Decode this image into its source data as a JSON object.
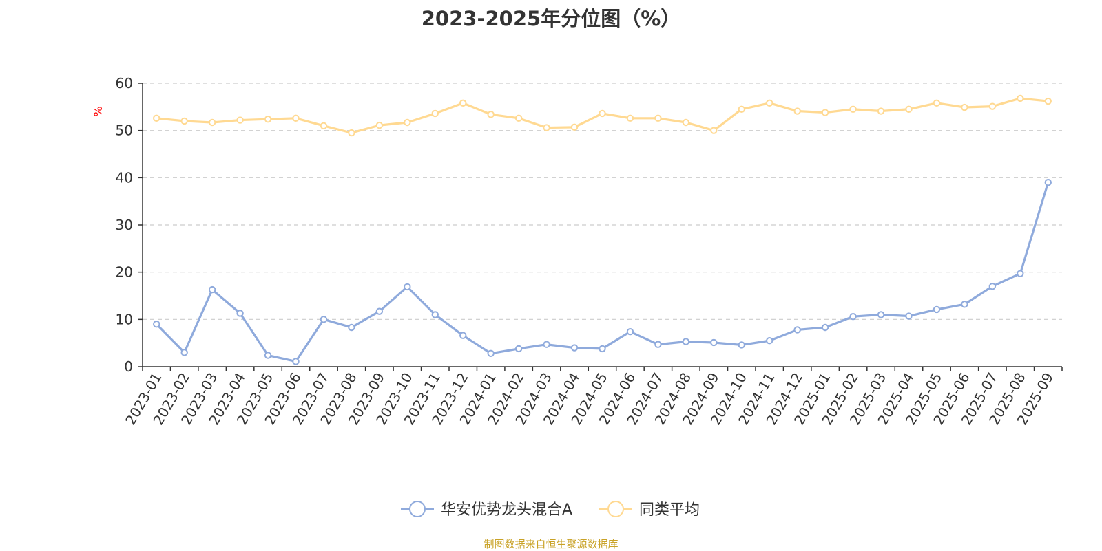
{
  "colors": {
    "series1": "#8faadc",
    "series2": "#ffd992",
    "axis": "#333333",
    "grid": "#cccccc",
    "unit": "#ff0000",
    "footer": "#c9a227"
  },
  "chart_data": {
    "type": "line",
    "title": "2023-2025年分位图（%）",
    "ylabel": "%",
    "xlabel": "",
    "ylim": [
      0,
      60
    ],
    "yticks": [
      "0",
      "10",
      "20",
      "30",
      "40",
      "50",
      "60"
    ],
    "grid": true,
    "legend_position": "bottom-center",
    "categories": [
      "2023-01",
      "2023-02",
      "2023-03",
      "2023-04",
      "2023-05",
      "2023-06",
      "2023-07",
      "2023-08",
      "2023-09",
      "2023-10",
      "2023-11",
      "2023-12",
      "2024-01",
      "2024-02",
      "2024-03",
      "2024-04",
      "2024-05",
      "2024-06",
      "2024-07",
      "2024-08",
      "2024-09",
      "2024-10",
      "2024-11",
      "2024-12",
      "2025-01",
      "2025-02",
      "2025-03",
      "2025-04",
      "2025-05",
      "2025-06",
      "2025-07",
      "2025-08",
      "2025-09"
    ],
    "series": [
      {
        "name": "华安优势龙头混合A",
        "values": [
          9.0,
          3.0,
          16.3,
          11.3,
          2.4,
          1.1,
          10.0,
          8.3,
          11.7,
          16.9,
          11.0,
          6.6,
          2.8,
          3.8,
          4.7,
          4.0,
          3.8,
          7.4,
          4.7,
          5.3,
          5.1,
          4.6,
          5.5,
          7.8,
          8.3,
          10.6,
          11.0,
          10.7,
          12.1,
          13.2,
          17.0,
          19.7,
          39.0
        ],
        "color": "#8faadc"
      },
      {
        "name": "同类平均",
        "values": [
          52.6,
          52.0,
          51.7,
          52.2,
          52.4,
          52.6,
          51.0,
          49.5,
          51.1,
          51.7,
          53.6,
          55.8,
          53.4,
          52.6,
          50.6,
          50.7,
          53.6,
          52.6,
          52.6,
          51.7,
          50.0,
          54.5,
          55.8,
          54.1,
          53.8,
          54.5,
          54.1,
          54.5,
          55.8,
          54.9,
          55.1,
          56.8,
          56.2
        ],
        "color": "#ffd992"
      }
    ]
  },
  "footer": {
    "source": "制图数据来自恒生聚源数据库"
  }
}
